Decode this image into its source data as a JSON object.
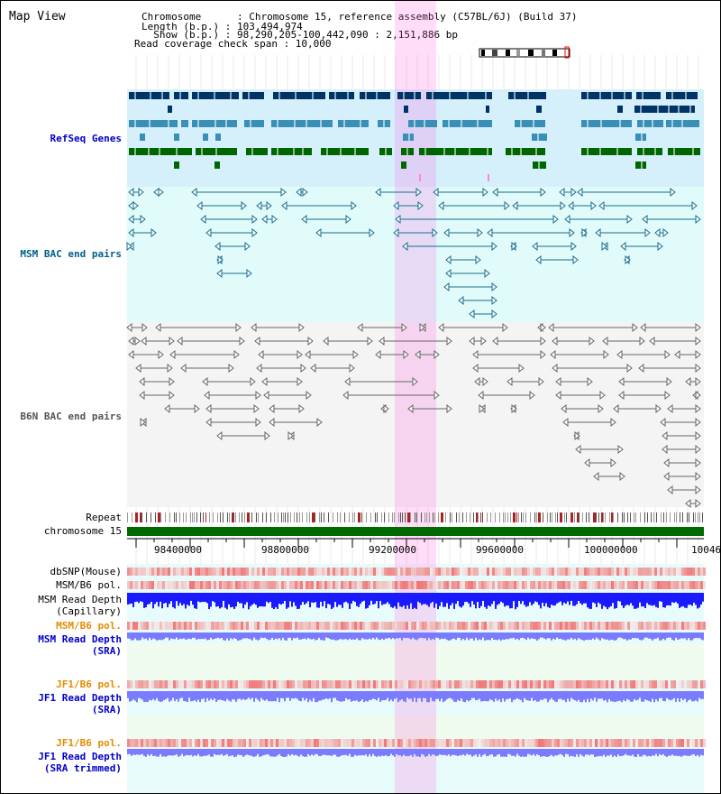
{
  "window": {
    "title": "Map View"
  },
  "header": {
    "rows": [
      {
        "key": "Chromosome",
        "value": "Chromosome 15, reference assembly (C57BL/6J) (Build 37)"
      },
      {
        "key": "Length (b.p.)",
        "value": "103,494,974"
      },
      {
        "key": "Show (b.p.)",
        "value": "98,290,205-100,442,090 : 2,151,886 bp"
      },
      {
        "key": "Read coverage check span",
        "value": "10,000"
      }
    ],
    "line1": "Chromosome      : Chromosome 15, reference assembly (C57BL/6J) (Build 37)",
    "line2": "Length (b.p.) : 103,494,974",
    "line3": "  Show (b.p.) : 98,290,205-100,442,090 : 2,151,886 bp",
    "line4": "Read coverage check span : 10,000"
  },
  "tracks": {
    "refseq": {
      "label": "RefSeq Genes",
      "color": "#0000cc"
    },
    "msm_bac": {
      "label": "MSM BAC end pairs",
      "color": "#005f87"
    },
    "b6n_bac": {
      "label": "B6N BAC end pairs",
      "color": "#555555"
    },
    "repeat": {
      "label": "Repeat"
    },
    "chromosome": {
      "label": "chromosome 15"
    },
    "dbsnp": {
      "label": "dbSNP(Mouse)"
    },
    "msm_b6_pol_1": {
      "label": "MSM/B6 pol."
    },
    "msm_read_depth_cap": {
      "label1": "MSM Read Depth",
      "label2": "(Capillary)"
    },
    "msm_b6_pol_2": {
      "label": "MSM/B6 pol.",
      "color": "#e68a00"
    },
    "msm_read_depth_sra": {
      "label1": "MSM Read Depth",
      "label2": "(SRA)",
      "color": "#0000cc"
    },
    "jf1_b6_pol_1": {
      "label": "JF1/B6 pol.",
      "color": "#e68a00"
    },
    "jf1_read_depth_sra": {
      "label1": "JF1 Read Depth",
      "label2": "(SRA)",
      "color": "#0000cc"
    },
    "jf1_b6_pol_2": {
      "label": "JF1/B6 pol.",
      "color": "#e68a00"
    },
    "jf1_read_depth_trim": {
      "label1": "JF1 Read Depth",
      "label2": "(SRA trimmed)",
      "color": "#0000cc"
    }
  },
  "axis": {
    "ticks": [
      "98400000",
      "98800000",
      "99200000",
      "99600000",
      "100000000",
      "10046"
    ]
  },
  "colors": {
    "refseq_dark": "#003366",
    "refseq_mid": "#3a8fb7",
    "refseq_green": "#006600",
    "highlight": "#ff66dd",
    "depth_blue": "#1a1aff",
    "depth_light": "#7b7bff"
  }
}
